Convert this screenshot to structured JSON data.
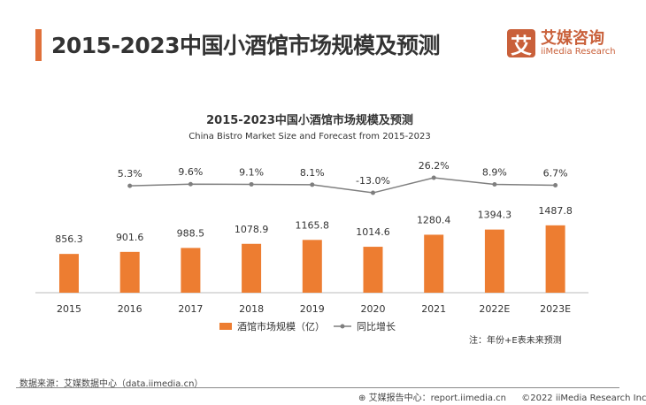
{
  "header": {
    "title": "2015-2023中国小酒馆市场规模及预测",
    "logo_cn": "艾媒咨询",
    "logo_en": "iiMedia Research",
    "logo_mark": "艾"
  },
  "chart_data": {
    "type": "bar+line",
    "title": "2015-2023中国小酒馆市场规模及预测",
    "subtitle": "China Bistro Market Size and Forecast from 2015-2023",
    "categories": [
      "2015",
      "2016",
      "2017",
      "2018",
      "2019",
      "2020",
      "2021",
      "2022E",
      "2023E"
    ],
    "series": [
      {
        "name": "酒馆市场规模（亿）",
        "type": "bar",
        "color": "#ed7d31",
        "values": [
          856.3,
          901.6,
          988.5,
          1078.9,
          1165.8,
          1014.6,
          1280.4,
          1394.3,
          1487.8
        ],
        "labels": [
          "856.3",
          "901.6",
          "988.5",
          "1078.9",
          "1165.8",
          "1014.6",
          "1280.4",
          "1394.3",
          "1487.8"
        ]
      },
      {
        "name": "同比增长",
        "type": "line",
        "color": "#7f7f7f",
        "values": [
          null,
          5.3,
          9.6,
          9.1,
          8.1,
          -13.0,
          26.2,
          8.9,
          6.7
        ],
        "labels": [
          "",
          "5.3%",
          "9.6%",
          "9.1%",
          "8.1%",
          "-13.0%",
          "26.2%",
          "8.9%",
          "6.7%"
        ]
      }
    ],
    "legend": "bottom",
    "grid": false
  },
  "note": "注：年份+E表未来预测",
  "source": "数据来源：艾媒数据中心（data.iimedia.cn）",
  "footer": {
    "report": "艾媒报告中心：report.iimedia.cn",
    "copyright": "©2022  iiMedia Research  Inc"
  }
}
